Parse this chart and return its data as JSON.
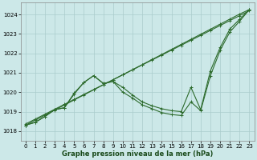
{
  "xlabel": "Graphe pression niveau de la mer (hPa)",
  "ylim": [
    1017.5,
    1024.6
  ],
  "xlim": [
    -0.5,
    23.5
  ],
  "yticks": [
    1018,
    1019,
    1020,
    1021,
    1022,
    1023,
    1024
  ],
  "xticks": [
    0,
    1,
    2,
    3,
    4,
    5,
    6,
    7,
    8,
    9,
    10,
    11,
    12,
    13,
    14,
    15,
    16,
    17,
    18,
    19,
    20,
    21,
    22,
    23
  ],
  "background_color": "#cce8e8",
  "grid_color": "#aacccc",
  "line_color": "#2d6b2d",
  "series1": [
    1018.3,
    1018.45,
    1018.75,
    1019.1,
    1019.2,
    1019.9,
    1020.5,
    1020.85,
    1020.45,
    1020.55,
    1020.0,
    1019.7,
    1019.35,
    1019.15,
    1018.95,
    1018.85,
    1018.8,
    1019.5,
    1019.05,
    1020.85,
    1022.15,
    1023.1,
    1023.65,
    1024.25
  ],
  "series2": [
    1018.3,
    1018.45,
    1018.75,
    1019.1,
    1019.2,
    1019.95,
    1020.5,
    1020.85,
    1020.45,
    1020.55,
    1020.25,
    1019.85,
    1019.5,
    1019.3,
    1019.15,
    1019.05,
    1019.0,
    1020.25,
    1019.1,
    1021.1,
    1022.3,
    1023.25,
    1023.75,
    1024.25
  ],
  "series3_straight": [
    1018.3,
    1018.56,
    1018.82,
    1019.08,
    1019.34,
    1019.6,
    1019.86,
    1020.12,
    1020.38,
    1020.64,
    1020.9,
    1021.16,
    1021.42,
    1021.68,
    1021.94,
    1022.2,
    1022.46,
    1022.72,
    1022.98,
    1023.24,
    1023.5,
    1023.76,
    1024.02,
    1024.25
  ],
  "marker": "+",
  "markersize": 3,
  "linewidth": 0.8,
  "tick_fontsize": 5,
  "xlabel_fontsize": 6
}
